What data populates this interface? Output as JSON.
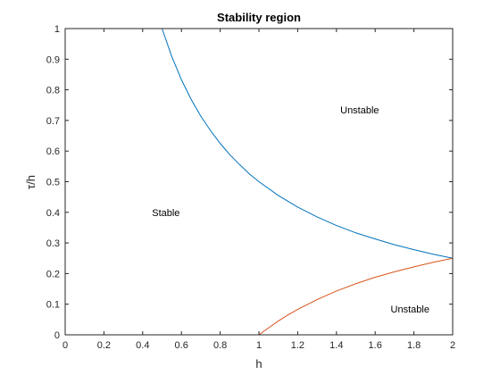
{
  "chart_data": {
    "type": "line",
    "title": "Stability region",
    "xlabel": "h",
    "ylabel": "τ/h",
    "xlim": [
      0,
      2
    ],
    "ylim": [
      0,
      1
    ],
    "grid": false,
    "xticks": [
      0,
      0.2,
      0.4,
      0.6,
      0.8,
      1,
      1.2,
      1.4,
      1.6,
      1.8,
      2
    ],
    "xtick_labels": [
      "0",
      "0.2",
      "0.4",
      "0.6",
      "0.8",
      "1",
      "1.2",
      "1.4",
      "1.6",
      "1.8",
      "2"
    ],
    "yticks": [
      0,
      0.1,
      0.2,
      0.3,
      0.4,
      0.5,
      0.6,
      0.7,
      0.8,
      0.9,
      1
    ],
    "ytick_labels": [
      "0",
      "0.1",
      "0.2",
      "0.3",
      "0.4",
      "0.5",
      "0.6",
      "0.7",
      "0.8",
      "0.9",
      "1"
    ],
    "series": [
      {
        "color": "#0072BD",
        "x": [
          0.5,
          0.55,
          0.6,
          0.65,
          0.7,
          0.75,
          0.8,
          0.85,
          0.9,
          0.95,
          1.0,
          1.1,
          1.2,
          1.3,
          1.4,
          1.5,
          1.6,
          1.7,
          1.8,
          1.9,
          2.0
        ],
        "y": [
          1.0,
          0.909,
          0.833,
          0.769,
          0.714,
          0.667,
          0.625,
          0.588,
          0.556,
          0.526,
          0.5,
          0.455,
          0.417,
          0.385,
          0.357,
          0.333,
          0.313,
          0.294,
          0.278,
          0.263,
          0.25
        ]
      },
      {
        "color": "#D95319",
        "x": [
          1.0,
          1.05,
          1.1,
          1.15,
          1.2,
          1.3,
          1.4,
          1.5,
          1.6,
          1.7,
          1.8,
          1.9,
          2.0
        ],
        "y": [
          0.0,
          0.023,
          0.045,
          0.065,
          0.083,
          0.115,
          0.143,
          0.167,
          0.188,
          0.206,
          0.222,
          0.237,
          0.25
        ]
      }
    ],
    "annotations": [
      {
        "text": "Stable",
        "x": 0.52,
        "y": 0.4
      },
      {
        "text": "Unstable",
        "x": 1.52,
        "y": 0.735
      },
      {
        "text": "Unstable",
        "x": 1.78,
        "y": 0.085
      }
    ]
  }
}
